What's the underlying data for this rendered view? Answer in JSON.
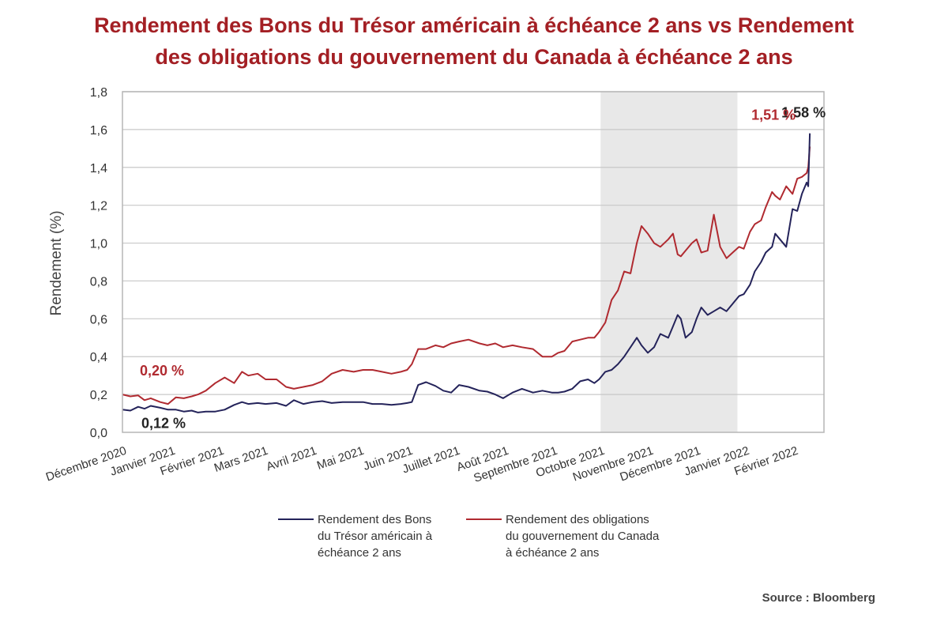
{
  "title_line1": "Rendement des Bons du Trésor américain à échéance 2 ans vs Rendement",
  "title_line2": "des obligations du gouvernement du Canada à échéance 2 ans",
  "source": "Source : Bloomberg",
  "colors": {
    "us": "#24235a",
    "ca": "#b02a30",
    "title": "#a31f24",
    "shade": "#e8e8e8",
    "grid": "#c8c8c8"
  },
  "chart_data": {
    "type": "line",
    "ylabel": "Rendement (%)",
    "ylim": [
      0,
      1.8
    ],
    "y_ticks": [
      "0,0",
      "0,2",
      "0,4",
      "0,6",
      "0,8",
      "1,0",
      "1,2",
      "1,4",
      "1,6",
      "1,8"
    ],
    "x_tick_labels": [
      "Décembre 2020",
      "Janvier 2021",
      "Février 2021",
      "Mars 2021",
      "Avril 2021",
      "Mai 2021",
      "Juin 2021",
      "Juillet 2021",
      "Août 2021",
      "Septembre 2021",
      "Octobre 2021",
      "Novembre 2021",
      "Décembre 2021",
      "Janvier 2022",
      "Février 2022"
    ],
    "x_tick_dates": [
      "2020-12-01",
      "2021-01-01",
      "2021-02-01",
      "2021-03-01",
      "2021-04-01",
      "2021-05-01",
      "2021-06-01",
      "2021-07-01",
      "2021-08-01",
      "2021-09-01",
      "2021-10-01",
      "2021-11-01",
      "2021-12-01",
      "2022-01-01",
      "2022-02-01"
    ],
    "xlim": [
      "2020-12-01",
      "2022-02-20"
    ],
    "shaded_range": [
      "2021-10-01",
      "2021-12-27"
    ],
    "grid": true,
    "legend_position": "bottom",
    "series": [
      {
        "name": "Rendement des Bons du Trésor américain à échéance 2 ans",
        "legend_lines": [
          "Rendement des Bons",
          "du Trésor américain à",
          "échéance 2 ans"
        ],
        "color": "#24235a",
        "x": [
          "2020-12-01",
          "2020-12-06",
          "2020-12-11",
          "2020-12-15",
          "2020-12-19",
          "2020-12-25",
          "2020-12-30",
          "2021-01-04",
          "2021-01-09",
          "2021-01-14",
          "2021-01-18",
          "2021-01-23",
          "2021-01-29",
          "2021-02-04",
          "2021-02-10",
          "2021-02-15",
          "2021-02-19",
          "2021-02-25",
          "2021-03-02",
          "2021-03-09",
          "2021-03-15",
          "2021-03-20",
          "2021-03-26",
          "2021-04-01",
          "2021-04-07",
          "2021-04-13",
          "2021-04-20",
          "2021-04-27",
          "2021-05-03",
          "2021-05-09",
          "2021-05-15",
          "2021-05-21",
          "2021-05-27",
          "2021-05-31",
          "2021-06-03",
          "2021-06-07",
          "2021-06-12",
          "2021-06-18",
          "2021-06-23",
          "2021-06-28",
          "2021-07-03",
          "2021-07-09",
          "2021-07-16",
          "2021-07-21",
          "2021-07-26",
          "2021-07-31",
          "2021-08-06",
          "2021-08-12",
          "2021-08-19",
          "2021-08-25",
          "2021-08-31",
          "2021-09-04",
          "2021-09-08",
          "2021-09-13",
          "2021-09-18",
          "2021-09-23",
          "2021-09-27",
          "2021-09-30",
          "2021-10-04",
          "2021-10-08",
          "2021-10-12",
          "2021-10-16",
          "2021-10-20",
          "2021-10-24",
          "2021-10-27",
          "2021-10-31",
          "2021-11-04",
          "2021-11-08",
          "2021-11-13",
          "2021-11-16",
          "2021-11-19",
          "2021-11-21",
          "2021-11-24",
          "2021-11-28",
          "2021-12-01",
          "2021-12-04",
          "2021-12-08",
          "2021-12-12",
          "2021-12-16",
          "2021-12-20",
          "2021-12-24",
          "2021-12-28",
          "2021-12-31",
          "2022-01-04",
          "2022-01-07",
          "2022-01-11",
          "2022-01-14",
          "2022-01-18",
          "2022-01-20",
          "2022-01-23",
          "2022-01-27",
          "2022-01-31",
          "2022-02-03",
          "2022-02-06",
          "2022-02-09",
          "2022-02-10",
          "2022-02-11"
        ],
        "y": [
          0.12,
          0.115,
          0.135,
          0.125,
          0.14,
          0.13,
          0.12,
          0.12,
          0.11,
          0.115,
          0.105,
          0.11,
          0.11,
          0.12,
          0.145,
          0.16,
          0.15,
          0.155,
          0.15,
          0.155,
          0.14,
          0.17,
          0.15,
          0.16,
          0.165,
          0.155,
          0.16,
          0.16,
          0.16,
          0.15,
          0.15,
          0.145,
          0.15,
          0.155,
          0.16,
          0.25,
          0.265,
          0.245,
          0.22,
          0.21,
          0.25,
          0.24,
          0.22,
          0.215,
          0.2,
          0.18,
          0.21,
          0.23,
          0.21,
          0.22,
          0.21,
          0.21,
          0.215,
          0.23,
          0.27,
          0.28,
          0.26,
          0.28,
          0.32,
          0.33,
          0.36,
          0.4,
          0.45,
          0.5,
          0.46,
          0.42,
          0.45,
          0.52,
          0.5,
          0.56,
          0.62,
          0.6,
          0.5,
          0.53,
          0.6,
          0.66,
          0.62,
          0.64,
          0.66,
          0.64,
          0.68,
          0.72,
          0.73,
          0.78,
          0.85,
          0.9,
          0.95,
          0.98,
          1.05,
          1.02,
          0.98,
          1.18,
          1.17,
          1.26,
          1.32,
          1.3,
          1.58
        ]
      },
      {
        "name": "Rendement des obligations du gouvernement du Canada à échéance 2 ans",
        "legend_lines": [
          "Rendement des obligations",
          "du gouvernement du Canada",
          "à échéance 2 ans"
        ],
        "color": "#b02a30",
        "x": [
          "2020-12-01",
          "2020-12-06",
          "2020-12-11",
          "2020-12-15",
          "2020-12-19",
          "2020-12-25",
          "2020-12-30",
          "2021-01-04",
          "2021-01-09",
          "2021-01-14",
          "2021-01-18",
          "2021-01-23",
          "2021-01-29",
          "2021-02-04",
          "2021-02-10",
          "2021-02-15",
          "2021-02-19",
          "2021-02-25",
          "2021-03-02",
          "2021-03-09",
          "2021-03-15",
          "2021-03-20",
          "2021-03-26",
          "2021-04-01",
          "2021-04-07",
          "2021-04-13",
          "2021-04-20",
          "2021-04-27",
          "2021-05-03",
          "2021-05-09",
          "2021-05-15",
          "2021-05-21",
          "2021-05-27",
          "2021-05-31",
          "2021-06-03",
          "2021-06-07",
          "2021-06-12",
          "2021-06-18",
          "2021-06-23",
          "2021-06-28",
          "2021-07-03",
          "2021-07-09",
          "2021-07-16",
          "2021-07-21",
          "2021-07-26",
          "2021-07-31",
          "2021-08-06",
          "2021-08-12",
          "2021-08-19",
          "2021-08-25",
          "2021-08-31",
          "2021-09-04",
          "2021-09-08",
          "2021-09-13",
          "2021-09-18",
          "2021-09-23",
          "2021-09-27",
          "2021-09-30",
          "2021-10-04",
          "2021-10-08",
          "2021-10-12",
          "2021-10-16",
          "2021-10-20",
          "2021-10-24",
          "2021-10-27",
          "2021-10-31",
          "2021-11-04",
          "2021-11-08",
          "2021-11-13",
          "2021-11-16",
          "2021-11-19",
          "2021-11-21",
          "2021-11-24",
          "2021-11-28",
          "2021-12-01",
          "2021-12-04",
          "2021-12-08",
          "2021-12-12",
          "2021-12-16",
          "2021-12-20",
          "2021-12-24",
          "2021-12-28",
          "2021-12-31",
          "2022-01-04",
          "2022-01-07",
          "2022-01-11",
          "2022-01-14",
          "2022-01-18",
          "2022-01-20",
          "2022-01-23",
          "2022-01-27",
          "2022-01-31",
          "2022-02-03",
          "2022-02-06",
          "2022-02-09",
          "2022-02-10",
          "2022-02-11"
        ],
        "y": [
          0.2,
          0.19,
          0.195,
          0.17,
          0.18,
          0.16,
          0.15,
          0.185,
          0.18,
          0.19,
          0.2,
          0.22,
          0.26,
          0.29,
          0.26,
          0.32,
          0.3,
          0.31,
          0.28,
          0.28,
          0.24,
          0.23,
          0.24,
          0.25,
          0.27,
          0.31,
          0.33,
          0.32,
          0.33,
          0.33,
          0.32,
          0.31,
          0.32,
          0.33,
          0.36,
          0.44,
          0.44,
          0.46,
          0.45,
          0.47,
          0.48,
          0.49,
          0.47,
          0.46,
          0.47,
          0.45,
          0.46,
          0.45,
          0.44,
          0.4,
          0.4,
          0.42,
          0.43,
          0.48,
          0.49,
          0.5,
          0.5,
          0.53,
          0.58,
          0.7,
          0.75,
          0.85,
          0.84,
          1.0,
          1.09,
          1.05,
          1.0,
          0.98,
          1.02,
          1.05,
          0.94,
          0.93,
          0.96,
          1.0,
          1.02,
          0.95,
          0.96,
          1.15,
          0.98,
          0.92,
          0.95,
          0.98,
          0.97,
          1.06,
          1.1,
          1.12,
          1.19,
          1.27,
          1.25,
          1.23,
          1.3,
          1.26,
          1.34,
          1.35,
          1.37,
          1.4,
          1.51
        ]
      }
    ],
    "annotations": [
      {
        "text": "1,58 %",
        "series": 0,
        "point": "end"
      },
      {
        "text": "1,51 %",
        "series": 1,
        "point": "end"
      },
      {
        "text": "0,20 %",
        "series": 1,
        "point": "start"
      },
      {
        "text": "0,12 %",
        "series": 0,
        "point": "start"
      }
    ]
  }
}
